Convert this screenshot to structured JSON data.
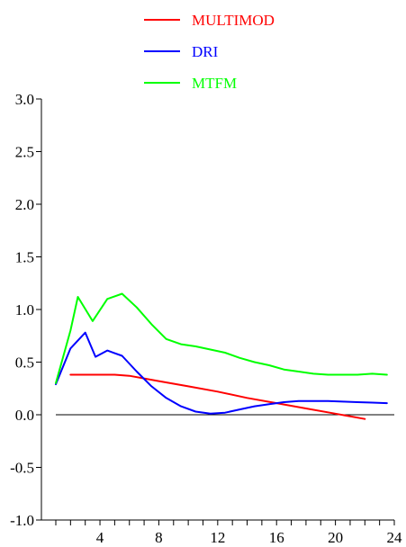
{
  "chart_data": {
    "type": "line",
    "title": "",
    "xlabel": "",
    "ylabel": "",
    "xlim": [
      0,
      24
    ],
    "ylim": [
      -1.0,
      3.0
    ],
    "xticks": [
      4,
      8,
      12,
      16,
      20,
      24
    ],
    "yticks": [
      -1.0,
      -0.5,
      0.0,
      0.5,
      1.0,
      1.5,
      2.0,
      2.5,
      3.0
    ],
    "xtick_labels": [
      "4",
      "8",
      "12",
      "16",
      "20",
      "24"
    ],
    "ytick_labels": [
      "-1.0",
      "-0.5",
      "0.0",
      "0.5",
      "1.0",
      "1.5",
      "2.0",
      "2.5",
      "3.0"
    ],
    "reference_line_y": 0.0,
    "grid": false,
    "legend_position": "top-center",
    "series": [
      {
        "name": "MULTIMOD",
        "color": "#ff0000",
        "x": [
          2,
          3,
          4,
          5,
          6,
          8,
          10,
          12,
          14,
          16,
          18,
          20,
          22
        ],
        "y": [
          0.38,
          0.38,
          0.38,
          0.38,
          0.37,
          0.32,
          0.27,
          0.22,
          0.16,
          0.11,
          0.06,
          0.01,
          -0.04
        ]
      },
      {
        "name": "DRI",
        "color": "#0000ff",
        "x": [
          1,
          2,
          3,
          3.7,
          4.5,
          5.5,
          6.5,
          7.5,
          8.5,
          9.5,
          10.5,
          11.5,
          12.5,
          13.5,
          14.5,
          15.5,
          16.5,
          17.5,
          18.5,
          19.5,
          20.5,
          21.5,
          22.5,
          23.5
        ],
        "y": [
          0.29,
          0.63,
          0.78,
          0.55,
          0.61,
          0.56,
          0.41,
          0.27,
          0.16,
          0.08,
          0.03,
          0.01,
          0.02,
          0.05,
          0.08,
          0.1,
          0.12,
          0.13,
          0.13,
          0.13,
          0.125,
          0.12,
          0.115,
          0.11
        ]
      },
      {
        "name": "MTFM",
        "color": "#00ff00",
        "x": [
          1,
          2,
          2.5,
          3.5,
          4.5,
          5.5,
          6.5,
          7.5,
          8.5,
          9.5,
          10.5,
          11.5,
          12.5,
          13.5,
          14.5,
          15.5,
          16.5,
          17.5,
          18.5,
          19.5,
          20.5,
          21.5,
          22.5,
          23.5
        ],
        "y": [
          0.3,
          0.8,
          1.12,
          0.89,
          1.1,
          1.15,
          1.02,
          0.86,
          0.72,
          0.67,
          0.65,
          0.62,
          0.59,
          0.54,
          0.5,
          0.47,
          0.43,
          0.41,
          0.39,
          0.38,
          0.38,
          0.38,
          0.39,
          0.38
        ]
      }
    ]
  }
}
